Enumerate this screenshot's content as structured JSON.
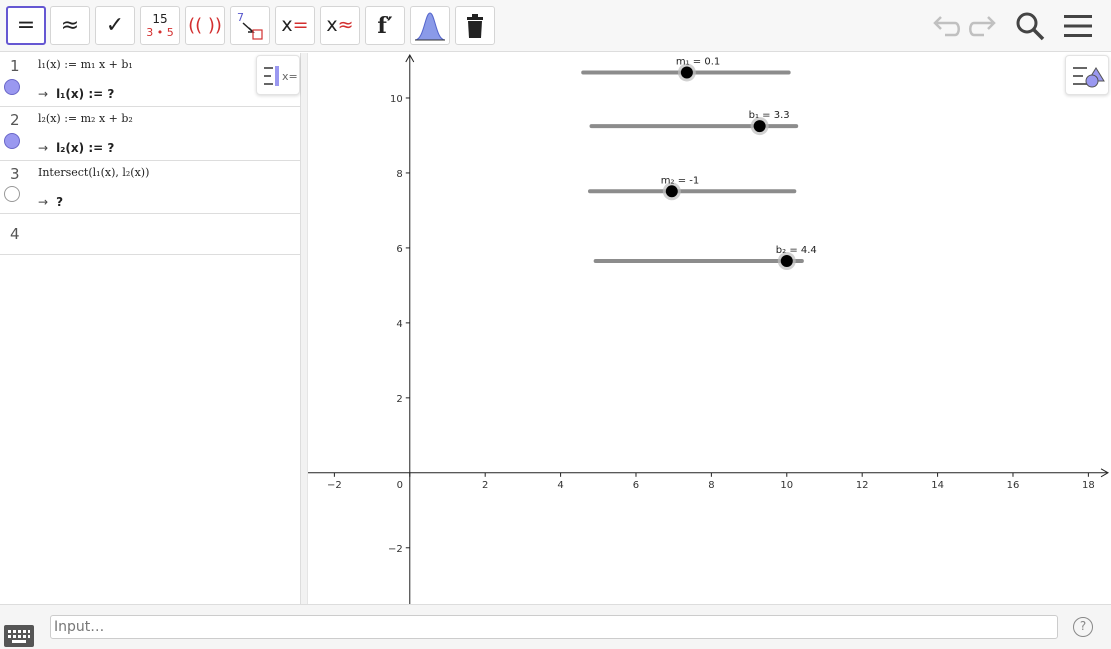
{
  "toolbar": {
    "buttons": [
      {
        "name": "evaluate-button",
        "label": "="
      },
      {
        "name": "numeric-button",
        "label": "≈"
      },
      {
        "name": "keep-input-button",
        "label": "✓"
      },
      {
        "name": "factor-button",
        "label_top": "15",
        "label_bottom": "3 • 5"
      },
      {
        "name": "expand-button",
        "label": "(( ))"
      },
      {
        "name": "substitute-button",
        "label": "7"
      },
      {
        "name": "solve-button",
        "label": "x",
        "label_suffix": "="
      },
      {
        "name": "solve-numerically-button",
        "label": "x",
        "label_suffix": "≈"
      },
      {
        "name": "derivative-button",
        "label": "f′"
      },
      {
        "name": "probability-button"
      },
      {
        "name": "delete-button"
      }
    ],
    "accent_color": "#6557d2"
  },
  "algebra": {
    "rows": [
      {
        "num": "1",
        "def": "l₁(x) := m₁ x + b₁",
        "out_label": "l₁(x) := ?",
        "marker": "on"
      },
      {
        "num": "2",
        "def": "l₂(x) := m₂ x + b₂",
        "out_label": "l₂(x) := ?",
        "marker": "on"
      },
      {
        "num": "3",
        "def": "Intersect(l₁(x), l₂(x))",
        "out_label": "?",
        "marker": "off"
      },
      {
        "num": "4",
        "def": "",
        "out_label": "",
        "marker": "none"
      }
    ],
    "arrow": "→"
  },
  "chart_data": {
    "type": "scatter",
    "xlim": [
      -2.7,
      18.6
    ],
    "ylim": [
      -3.5,
      11.2
    ],
    "x_ticks": [
      -2,
      0,
      2,
      4,
      6,
      8,
      10,
      12,
      14,
      16,
      18
    ],
    "y_ticks": [
      -2,
      2,
      4,
      6,
      8,
      10
    ],
    "origin_label": "0",
    "sliders": [
      {
        "name": "m1",
        "label": "m₁ = 0.1",
        "y": 10.68,
        "x_start": 4.6,
        "x_end": 10.05,
        "knob_x": 7.35
      },
      {
        "name": "b1",
        "label": "b₁ = 3.3",
        "y": 9.25,
        "x_start": 4.82,
        "x_end": 10.25,
        "knob_x": 9.28
      },
      {
        "name": "m2",
        "label": "m₂ = -1",
        "y": 7.51,
        "x_start": 4.78,
        "x_end": 10.2,
        "knob_x": 6.95
      },
      {
        "name": "b2",
        "label": "b₂ = 4.4",
        "y": 5.65,
        "x_start": 4.93,
        "x_end": 10.4,
        "knob_x": 10.0
      }
    ]
  },
  "input": {
    "placeholder": "Input…"
  },
  "help": {
    "label": "?"
  }
}
